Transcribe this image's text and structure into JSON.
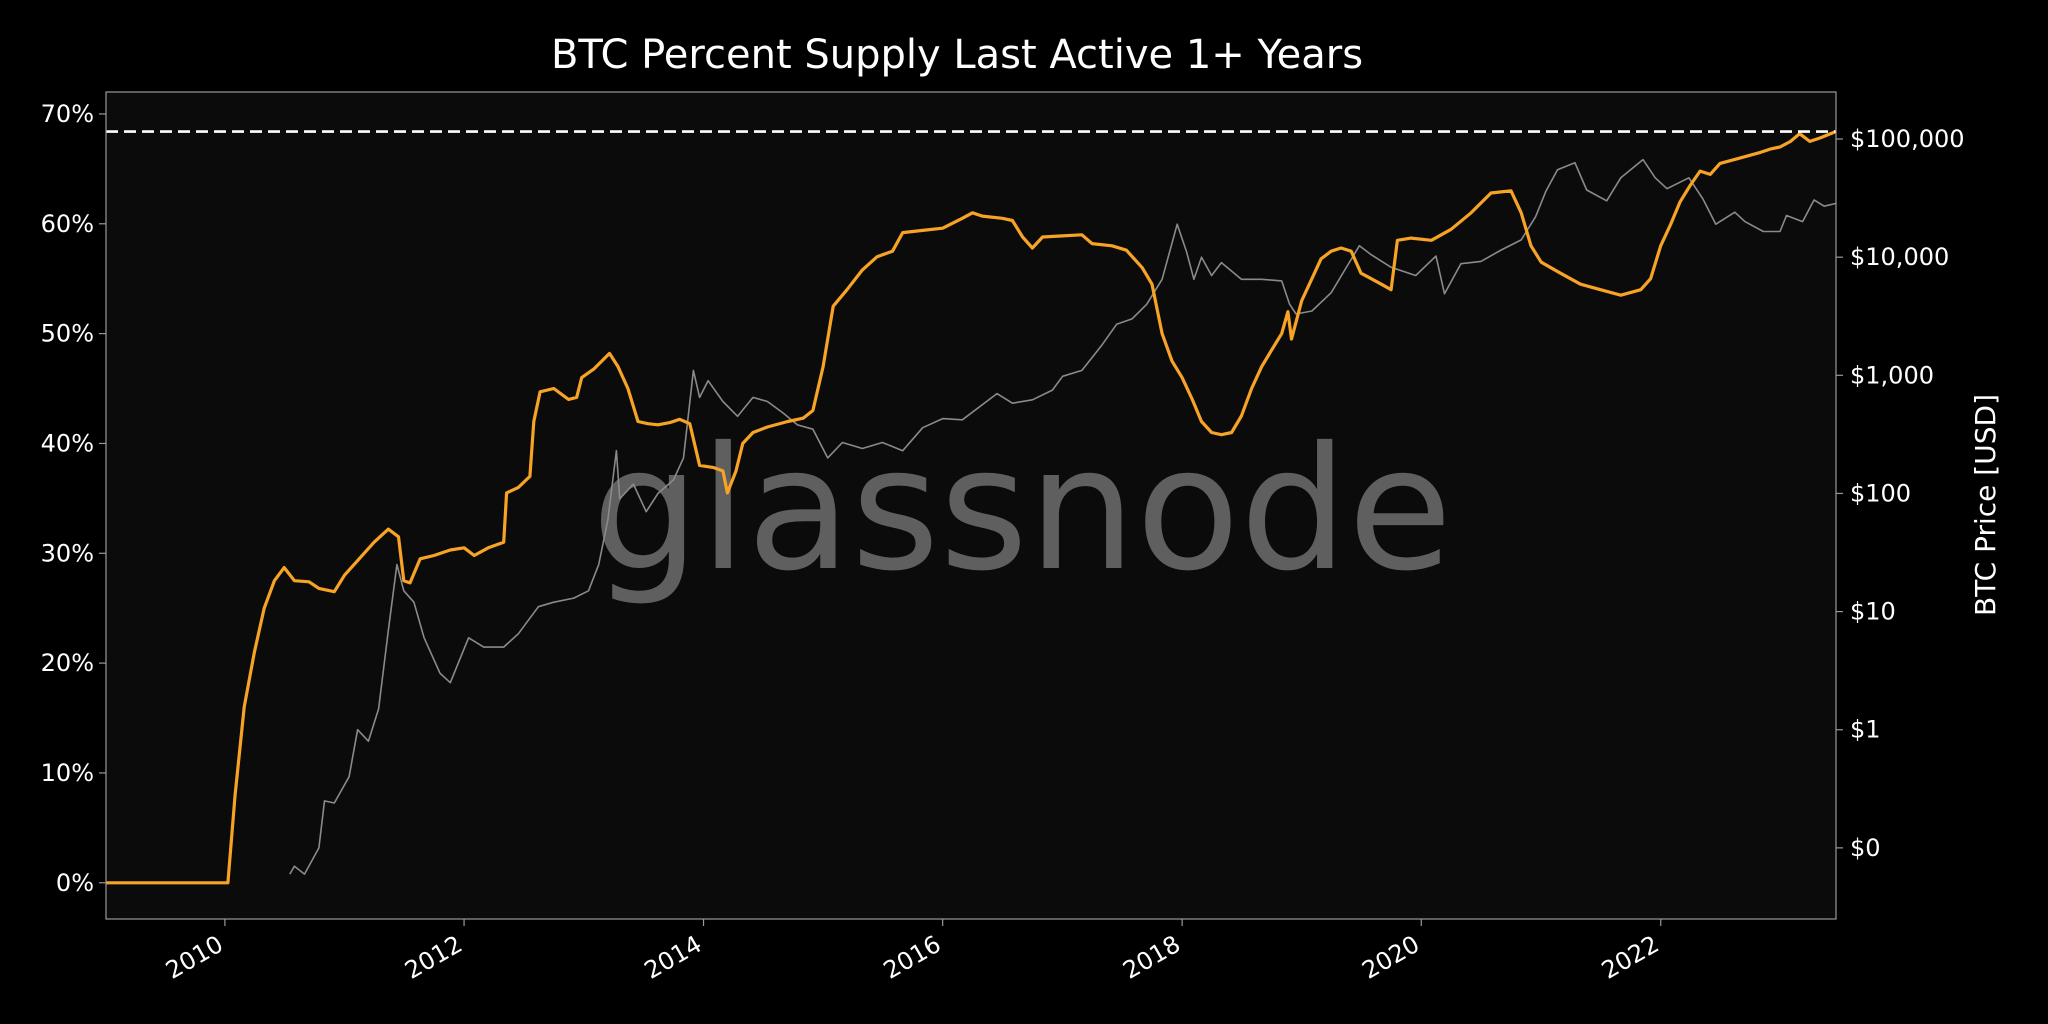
{
  "chart_data": {
    "type": "line",
    "title": "BTC Percent Supply Last Active 1+ Years",
    "watermark": "glassnode",
    "xlabel": "",
    "ylabel_left": "",
    "ylabel_right": "BTC Price [USD]",
    "x_range": [
      "2009-01-03",
      "2023-06-20"
    ],
    "x_ticks": [
      "2010",
      "2012",
      "2014",
      "2016",
      "2018",
      "2020",
      "2022"
    ],
    "y_left_range": [
      -3.3,
      72
    ],
    "y_left_ticks": [
      "0%",
      "10%",
      "20%",
      "30%",
      "40%",
      "50%",
      "60%",
      "70%"
    ],
    "y_right_scale": "log",
    "y_right_range": [
      0.025,
      250000
    ],
    "y_right_ticks": [
      {
        "value": 0.1,
        "label": "$0"
      },
      {
        "value": 1,
        "label": "$1"
      },
      {
        "value": 10,
        "label": "$10"
      },
      {
        "value": 100,
        "label": "$100"
      },
      {
        "value": 1000,
        "label": "$1,000"
      },
      {
        "value": 10000,
        "label": "$10,000"
      },
      {
        "value": 100000,
        "label": "$100,000"
      }
    ],
    "grid": false,
    "colors": {
      "background": "#000000",
      "plot_background": "#0b0b0b",
      "axes": "#9a9a9a",
      "supply_line": "#f7a325",
      "price_line": "#8a8a8a",
      "ath_line": "#ffffff"
    },
    "ath_level": 68.4,
    "series": [
      {
        "key": "supply",
        "axis": "left",
        "points": [
          [
            "2009-01-03",
            0
          ],
          [
            "2010-01-10",
            0
          ],
          [
            "2010-02-01",
            8
          ],
          [
            "2010-03-01",
            16
          ],
          [
            "2010-04-01",
            21
          ],
          [
            "2010-05-01",
            25
          ],
          [
            "2010-06-01",
            27.5
          ],
          [
            "2010-07-01",
            28.7
          ],
          [
            "2010-08-01",
            27.5
          ],
          [
            "2010-09-15",
            27.4
          ],
          [
            "2010-10-15",
            26.8
          ],
          [
            "2010-12-01",
            26.5
          ],
          [
            "2011-01-01",
            28
          ],
          [
            "2011-02-15",
            29.5
          ],
          [
            "2011-04-01",
            31
          ],
          [
            "2011-05-15",
            32.2
          ],
          [
            "2011-06-15",
            31.5
          ],
          [
            "2011-07-01",
            27.5
          ],
          [
            "2011-07-20",
            27.3
          ],
          [
            "2011-08-20",
            29.5
          ],
          [
            "2011-10-01",
            29.8
          ],
          [
            "2011-11-20",
            30.3
          ],
          [
            "2012-01-01",
            30.5
          ],
          [
            "2012-02-01",
            29.8
          ],
          [
            "2012-03-15",
            30.5
          ],
          [
            "2012-05-01",
            31
          ],
          [
            "2012-05-10",
            35.5
          ],
          [
            "2012-06-15",
            36
          ],
          [
            "2012-07-20",
            37
          ],
          [
            "2012-08-01",
            42
          ],
          [
            "2012-08-20",
            44.7
          ],
          [
            "2012-10-01",
            45
          ],
          [
            "2012-11-15",
            44
          ],
          [
            "2012-12-10",
            44.2
          ],
          [
            "2012-12-25",
            46
          ],
          [
            "2013-02-01",
            46.8
          ],
          [
            "2013-03-20",
            48.2
          ],
          [
            "2013-04-15",
            47
          ],
          [
            "2013-05-15",
            45
          ],
          [
            "2013-06-15",
            42
          ],
          [
            "2013-07-15",
            41.8
          ],
          [
            "2013-08-15",
            41.7
          ],
          [
            "2013-09-20",
            41.9
          ],
          [
            "2013-10-20",
            42.2
          ],
          [
            "2013-11-20",
            41.8
          ],
          [
            "2013-12-20",
            38
          ],
          [
            "2014-02-01",
            37.8
          ],
          [
            "2014-03-01",
            37.5
          ],
          [
            "2014-03-15",
            35.5
          ],
          [
            "2014-04-10",
            37.5
          ],
          [
            "2014-05-01",
            40
          ],
          [
            "2014-06-01",
            41
          ],
          [
            "2014-07-15",
            41.5
          ],
          [
            "2014-09-15",
            42
          ],
          [
            "2014-11-01",
            42.3
          ],
          [
            "2014-12-01",
            43
          ],
          [
            "2015-01-01",
            47
          ],
          [
            "2015-02-01",
            52.5
          ],
          [
            "2015-03-15",
            54
          ],
          [
            "2015-05-01",
            55.8
          ],
          [
            "2015-06-15",
            57
          ],
          [
            "2015-08-01",
            57.5
          ],
          [
            "2015-09-01",
            59.2
          ],
          [
            "2015-11-01",
            59.4
          ],
          [
            "2016-01-01",
            59.6
          ],
          [
            "2016-03-01",
            60.5
          ],
          [
            "2016-04-01",
            61
          ],
          [
            "2016-05-01",
            60.7
          ],
          [
            "2016-07-01",
            60.5
          ],
          [
            "2016-08-01",
            60.3
          ],
          [
            "2016-09-01",
            58.8
          ],
          [
            "2016-10-01",
            57.8
          ],
          [
            "2016-11-01",
            58.8
          ],
          [
            "2017-01-01",
            58.9
          ],
          [
            "2017-03-01",
            59
          ],
          [
            "2017-04-01",
            58.2
          ],
          [
            "2017-06-01",
            58
          ],
          [
            "2017-07-15",
            57.6
          ],
          [
            "2017-09-01",
            56
          ],
          [
            "2017-10-01",
            54.5
          ],
          [
            "2017-11-01",
            50
          ],
          [
            "2017-12-01",
            47.5
          ],
          [
            "2018-01-01",
            46
          ],
          [
            "2018-02-01",
            44
          ],
          [
            "2018-03-01",
            42
          ],
          [
            "2018-04-01",
            41
          ],
          [
            "2018-05-01",
            40.8
          ],
          [
            "2018-06-01",
            41
          ],
          [
            "2018-07-01",
            42.5
          ],
          [
            "2018-08-01",
            45
          ],
          [
            "2018-09-01",
            47
          ],
          [
            "2018-10-01",
            48.5
          ],
          [
            "2018-11-01",
            50
          ],
          [
            "2018-11-20",
            52
          ],
          [
            "2018-12-01",
            49.5
          ],
          [
            "2019-01-01",
            53
          ],
          [
            "2019-02-01",
            55
          ],
          [
            "2019-03-01",
            56.8
          ],
          [
            "2019-04-01",
            57.5
          ],
          [
            "2019-05-01",
            57.8
          ],
          [
            "2019-06-01",
            57.5
          ],
          [
            "2019-07-01",
            55.5
          ],
          [
            "2019-08-01",
            55
          ],
          [
            "2019-09-01",
            54.5
          ],
          [
            "2019-10-01",
            54
          ],
          [
            "2019-10-20",
            58.5
          ],
          [
            "2019-12-01",
            58.7
          ],
          [
            "2020-02-01",
            58.5
          ],
          [
            "2020-04-01",
            59.5
          ],
          [
            "2020-06-01",
            61
          ],
          [
            "2020-08-01",
            62.8
          ],
          [
            "2020-10-01",
            63
          ],
          [
            "2020-11-01",
            61
          ],
          [
            "2020-12-01",
            58
          ],
          [
            "2021-01-01",
            56.5
          ],
          [
            "2021-03-01",
            55.5
          ],
          [
            "2021-05-01",
            54.5
          ],
          [
            "2021-07-01",
            54
          ],
          [
            "2021-09-01",
            53.5
          ],
          [
            "2021-11-01",
            54
          ],
          [
            "2021-12-01",
            55
          ],
          [
            "2022-01-01",
            58
          ],
          [
            "2022-02-01",
            60
          ],
          [
            "2022-03-01",
            62
          ],
          [
            "2022-04-01",
            63.5
          ],
          [
            "2022-05-01",
            64.8
          ],
          [
            "2022-06-01",
            64.5
          ],
          [
            "2022-07-01",
            65.5
          ],
          [
            "2022-09-01",
            66
          ],
          [
            "2022-11-01",
            66.5
          ],
          [
            "2022-12-01",
            66.8
          ],
          [
            "2023-01-01",
            67
          ],
          [
            "2023-02-01",
            67.5
          ],
          [
            "2023-03-01",
            68.2
          ],
          [
            "2023-04-01",
            67.5
          ],
          [
            "2023-05-01",
            67.8
          ],
          [
            "2023-06-20",
            68.4
          ]
        ]
      },
      {
        "key": "price",
        "axis": "right",
        "points": [
          [
            "2010-07-18",
            0.06
          ],
          [
            "2010-08-01",
            0.07
          ],
          [
            "2010-09-01",
            0.06
          ],
          [
            "2010-10-15",
            0.1
          ],
          [
            "2010-11-01",
            0.25
          ],
          [
            "2010-12-01",
            0.24
          ],
          [
            "2011-01-15",
            0.4
          ],
          [
            "2011-02-10",
            1
          ],
          [
            "2011-03-15",
            0.8
          ],
          [
            "2011-04-15",
            1.5
          ],
          [
            "2011-05-15",
            7
          ],
          [
            "2011-06-10",
            25
          ],
          [
            "2011-07-01",
            15
          ],
          [
            "2011-08-01",
            12
          ],
          [
            "2011-09-01",
            6
          ],
          [
            "2011-10-20",
            3
          ],
          [
            "2011-11-20",
            2.5
          ],
          [
            "2011-12-20",
            4
          ],
          [
            "2012-01-15",
            6
          ],
          [
            "2012-03-01",
            5
          ],
          [
            "2012-05-01",
            5
          ],
          [
            "2012-06-15",
            6.5
          ],
          [
            "2012-08-15",
            11
          ],
          [
            "2012-10-01",
            12
          ],
          [
            "2012-12-01",
            13
          ],
          [
            "2013-01-15",
            15
          ],
          [
            "2013-02-15",
            25
          ],
          [
            "2013-03-15",
            60
          ],
          [
            "2013-04-10",
            230
          ],
          [
            "2013-04-20",
            90
          ],
          [
            "2013-06-01",
            120
          ],
          [
            "2013-07-10",
            70
          ],
          [
            "2013-08-15",
            100
          ],
          [
            "2013-10-01",
            130
          ],
          [
            "2013-11-01",
            200
          ],
          [
            "2013-12-01",
            1100
          ],
          [
            "2013-12-20",
            650
          ],
          [
            "2014-01-15",
            900
          ],
          [
            "2014-03-01",
            600
          ],
          [
            "2014-04-15",
            450
          ],
          [
            "2014-06-01",
            650
          ],
          [
            "2014-07-15",
            600
          ],
          [
            "2014-09-01",
            480
          ],
          [
            "2014-10-15",
            380
          ],
          [
            "2014-12-01",
            350
          ],
          [
            "2015-01-15",
            200
          ],
          [
            "2015-03-01",
            270
          ],
          [
            "2015-05-01",
            240
          ],
          [
            "2015-07-01",
            270
          ],
          [
            "2015-09-01",
            230
          ],
          [
            "2015-11-01",
            360
          ],
          [
            "2016-01-01",
            430
          ],
          [
            "2016-03-01",
            420
          ],
          [
            "2016-06-15",
            700
          ],
          [
            "2016-08-01",
            580
          ],
          [
            "2016-10-01",
            620
          ],
          [
            "2016-12-01",
            750
          ],
          [
            "2017-01-01",
            980
          ],
          [
            "2017-03-01",
            1100
          ],
          [
            "2017-05-01",
            1800
          ],
          [
            "2017-06-15",
            2700
          ],
          [
            "2017-08-01",
            3000
          ],
          [
            "2017-09-15",
            4000
          ],
          [
            "2017-11-01",
            6500
          ],
          [
            "2017-12-17",
            19000
          ],
          [
            "2018-01-15",
            11000
          ],
          [
            "2018-02-06",
            6500
          ],
          [
            "2018-03-01",
            10000
          ],
          [
            "2018-04-01",
            7000
          ],
          [
            "2018-05-01",
            9000
          ],
          [
            "2018-07-01",
            6500
          ],
          [
            "2018-09-01",
            6500
          ],
          [
            "2018-11-01",
            6300
          ],
          [
            "2018-11-25",
            4000
          ],
          [
            "2018-12-15",
            3300
          ],
          [
            "2019-02-01",
            3500
          ],
          [
            "2019-04-01",
            5000
          ],
          [
            "2019-05-15",
            8000
          ],
          [
            "2019-06-26",
            12500
          ],
          [
            "2019-08-01",
            10500
          ],
          [
            "2019-10-01",
            8200
          ],
          [
            "2019-12-15",
            7000
          ],
          [
            "2020-02-15",
            10200
          ],
          [
            "2020-03-12",
            4900
          ],
          [
            "2020-05-01",
            8800
          ],
          [
            "2020-07-01",
            9200
          ],
          [
            "2020-09-01",
            11500
          ],
          [
            "2020-11-01",
            14000
          ],
          [
            "2020-12-15",
            22000
          ],
          [
            "2021-01-15",
            36000
          ],
          [
            "2021-02-20",
            55000
          ],
          [
            "2021-04-14",
            63000
          ],
          [
            "2021-05-20",
            37000
          ],
          [
            "2021-07-20",
            30000
          ],
          [
            "2021-09-01",
            47000
          ],
          [
            "2021-11-08",
            67000
          ],
          [
            "2021-12-15",
            47000
          ],
          [
            "2022-01-20",
            38000
          ],
          [
            "2022-03-28",
            47000
          ],
          [
            "2022-05-10",
            31000
          ],
          [
            "2022-06-18",
            19000
          ],
          [
            "2022-08-15",
            24000
          ],
          [
            "2022-09-15",
            20000
          ],
          [
            "2022-11-10",
            16500
          ],
          [
            "2022-12-31",
            16500
          ],
          [
            "2023-01-20",
            22500
          ],
          [
            "2023-03-10",
            20000
          ],
          [
            "2023-04-14",
            30500
          ],
          [
            "2023-05-15",
            27000
          ],
          [
            "2023-06-20",
            28500
          ]
        ]
      }
    ]
  }
}
